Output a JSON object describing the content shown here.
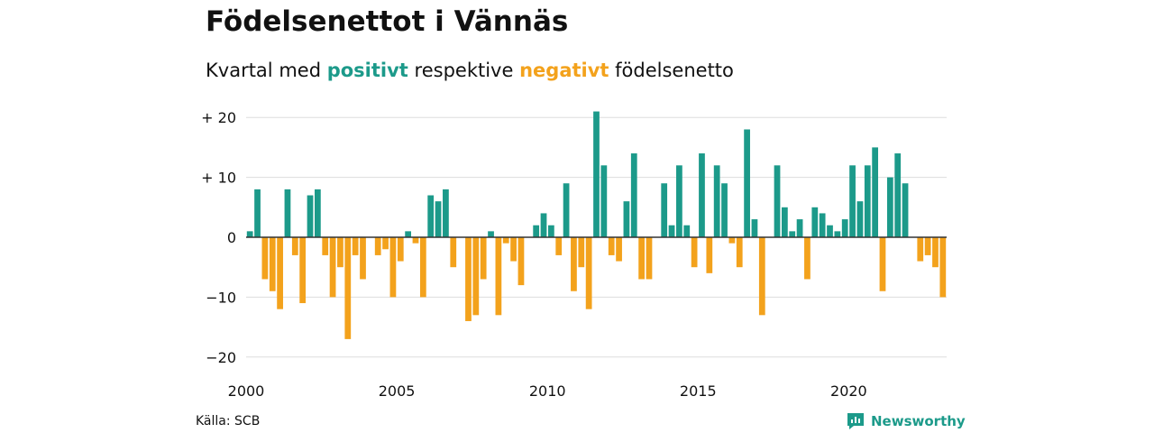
{
  "title": "Födelsenettot i Vännäs",
  "subtitle": {
    "prefix": "Kvartal med",
    "positive_word": "positivt",
    "middle": "respektive",
    "negative_word": "negativt",
    "suffix": "födelsenetto"
  },
  "source": "Källa: SCB",
  "brand": "Newsworthy",
  "colors": {
    "positive": "#1c9a8a",
    "negative": "#f3a21c",
    "grid": "#dddddd",
    "zero": "#333333"
  },
  "chart_data": {
    "type": "bar",
    "x_start": 2000,
    "x_end": 2023.25,
    "ylim": [
      -22,
      22
    ],
    "grid": true,
    "yticks": [
      {
        "value": 20,
        "label": "+ 20"
      },
      {
        "value": 10,
        "label": "+ 10"
      },
      {
        "value": 0,
        "label": "0"
      },
      {
        "value": -10,
        "label": "−10"
      },
      {
        "value": -20,
        "label": "−20"
      }
    ],
    "xticks": [
      {
        "value": 2000,
        "label": "2000"
      },
      {
        "value": 2005,
        "label": "2005"
      },
      {
        "value": 2010,
        "label": "2010"
      },
      {
        "value": 2015,
        "label": "2015"
      },
      {
        "value": 2020,
        "label": "2020"
      }
    ],
    "values": [
      1,
      8,
      -7,
      -9,
      -12,
      8,
      -3,
      -11,
      7,
      8,
      -3,
      -10,
      -5,
      -17,
      -3,
      -7,
      0,
      -3,
      -2,
      -10,
      -4,
      1,
      -1,
      -10,
      7,
      6,
      8,
      -5,
      0,
      -14,
      -13,
      -7,
      1,
      -13,
      -1,
      -4,
      -8,
      0,
      2,
      4,
      2,
      -3,
      9,
      -9,
      -5,
      -12,
      21,
      12,
      -3,
      -4,
      6,
      14,
      -7,
      -7,
      0,
      9,
      2,
      12,
      2,
      -5,
      14,
      -6,
      12,
      9,
      -1,
      -5,
      18,
      3,
      -13,
      0,
      12,
      5,
      1,
      3,
      -7,
      5,
      4,
      2,
      1,
      3,
      12,
      6,
      12,
      15,
      -9,
      10,
      14,
      9,
      0,
      -4,
      -3,
      -5,
      -10
    ]
  }
}
